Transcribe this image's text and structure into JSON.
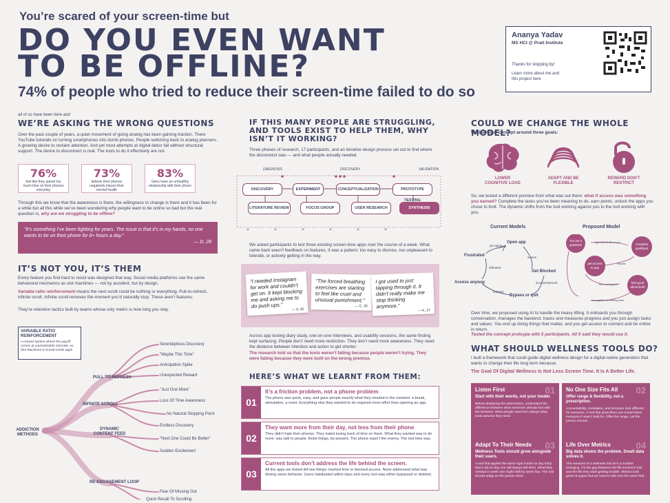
{
  "header": {
    "kicker": "You’re scared of your screen-time but",
    "title1": "DO YOU EVEN WANT",
    "title2": "TO BE OFFLINE?",
    "subtitle": "74% of people who tried to reduce their screen-time failed to do so"
  },
  "author": {
    "name": "Ananya Yadav",
    "program": "MS HCI @ Pratt Institute",
    "thanks": "Thanks for stopping by!",
    "more": "Learn more about me and this project here"
  },
  "col1": {
    "eyebrow": "all of us have been here and",
    "h1": "WE’RE ASKING THE WRONG QUESTIONS",
    "p1": "Over the past couple of years, a quiet movement of going analog has been gaining traction. There YouTube tutorials on turning smartphones into dumb phones. People switching back to analog planners. A growing desire to reclaim attention. And yet most attempts at digital detox fail without structural support. The desire to disconnect is real. The tools to do it effectively are not.",
    "stats": [
      {
        "n": "76%",
        "t": "feel like they spend too much time on their phones everyday"
      },
      {
        "n": "73%",
        "t": "believe their phones negatively impact their mental health"
      },
      {
        "n": "83%",
        "t": "Genz have an unhealthy relationship with their phone"
      }
    ],
    "p2a": "Through this we know that the awareness is there, the willingness to change is there and it has been for a while but all this while we’ve been wondering why people want to be online so bad but the real question is,",
    "p2b": "why are we struggling to be offline?",
    "quote": "\"It’s something I’ve been fighting for years. The issue is that it’s in my hands, no one wants to be on their phone for 8+ hours a day.\"",
    "quote_by": "— D, 28",
    "h2": "IT’S NOT YOU, IT’S THEM",
    "p3": "Every feature you find hard to resist was designed that way. Social media platforms use the same behavioral mechanics as slot machines — not by accident, but by design.",
    "p4a": "Variable ratio reinforcement",
    "p4b": "means the next scroll could be nothing or everything. Pull-to-refresh, infinite scroll. Infinite scroll removes the moment you’d naturally stop. These aren’t features.",
    "p5": "They’re retention tactics built by teams whose only metric is how long you stay.",
    "vrr_title": "VARIABLE RATIO REINFORCEMENT",
    "vrr_text": "A reward system where the payoff comes at unpredictable intervals. ex. Slot Machines & Social media apps",
    "tree_root": "ADDICTION METHODS",
    "tree": [
      {
        "name": "PULL TO REFRESH",
        "leaves": [
          "Serendipitous Discovery",
          "\"Maybe This Time\"",
          "Anticipation Spike",
          "Unexpected Reward"
        ]
      },
      {
        "name": "INFINITE SCROLL",
        "leaves": [
          "\"Just One More\"",
          "Loss Of Time Awareness",
          "No Natural Stopping Point",
          "Endless Discovery"
        ]
      },
      {
        "name": "DYNAMIC CONTENT FEED",
        "leaves": [
          "\"Next One Could Be Better\"",
          "Sudden Excitement"
        ]
      },
      {
        "name": "RE-ENGAGEMENT LOOP",
        "leaves": [
          "Fear Of Missing Out",
          "Quick Recall To Scrolling"
        ]
      }
    ]
  },
  "col2": {
    "h1": "IF THIS MANY PEOPLE ARE STRUGGLING, AND TOOLS EXIST TO HELP THEM, WHY ISN’T IT WORKING?",
    "p1": "Three phases of research, 17 participants, and an iterative design process set out to find where the disconnect was — and what people actually needed.",
    "phases": [
      "DIAGNOSIS",
      "DISCOVERY",
      "VALIDATION"
    ],
    "nodes": [
      "DISCOVERY",
      "EXPERIMENT",
      "CONCEPTUALIZATION",
      "PROTOTYPE TESTING",
      "LITERATURE REVIEW",
      "FOCUS GROUP",
      "USER RESEARCH",
      "SYNTHESIS"
    ],
    "p2": "We asked participants to test three existing screen-time apps over the course of a week. What came back wasn’t feedback on features. It was a pattern: too easy to dismiss, too unpleasant to tolerate, or actively getting in the way.",
    "quotes": [
      {
        "t": "\"I needed Instagram for work and couldn’t get on. It kept blocking me and asking me to do push ups.\"",
        "by": "— V, 25"
      },
      {
        "t": "\"The forced breathing exercises are starting to feel like cruel and unusual punishment.\"",
        "by": "— C, 26"
      },
      {
        "t": "I got used to just tapping through it. It didn’t really make me stop thinking anymore.\"",
        "by": "— K, 27"
      }
    ],
    "p3a": "Across app testing diary study, one-on-one interviews, and usability sessions, the same finding kept surfacing.",
    "p3b": "People don’t need more restriction. They don’t need more awareness. They need the distance between intention and action to get shorter.",
    "p4": "The research told us that the tools weren’t failing because people weren’t trying. They were failing because they were built on the wrong premise.",
    "h2": "HERE’S WHAT WE LEARNT FROM THEM:",
    "learn": [
      {
        "n": "01",
        "t": "It’s a friction problem, not a phone problem",
        "d": "The phone was quick, easy, and gave people exactly what they needed in the moment: a break, stimulation, a reset. Everything else they wanted to do required more effort than opening an app."
      },
      {
        "n": "02",
        "t": "They want more from their day, not less from their phone",
        "d": "They didn’t hate their phones. They hated losing track of time on them. What they wanted was to do more: was talk to people, finish things, be present. The phone wasn’t the enemy. The lost time was."
      },
      {
        "n": "03",
        "t": "Current tools don’t address the life behind the screen.",
        "d": "All the apps we tested did two things: tracked time or blocked access. None addressed what was driving users behavior. Users habituated within days and every tool was either bypassed or deleted."
      }
    ]
  },
  "col3": {
    "h1": "COULD WE CHANGE THE  WHOLE MODEL?",
    "intro": "We built our concept around three goals:",
    "goals": [
      "LOWER COGNITIVE LOAD",
      "ADAPT AND BE FLEXIBLE",
      "REWARD DON’T RESTRICT"
    ],
    "p1a": "So, we tested a different premise from what was out there:",
    "p1b": "what if access was something you earned?",
    "p1c": "Complete the tasks you’ve been meaning to do, earn points, unlock the apps you chose to limit. The dynamic shifts from the tool working against you to the tool working with you.",
    "current_title": "Current Models",
    "proposed_title": "Proposed Model",
    "current": [
      "Open app",
      "Frustrated",
      "Get Blocked",
      "Access anyway",
      "Bypass or quit",
      "yet again",
      "defeated",
      "scams",
      "irritated",
      "inconvenienced"
    ],
    "proposed": [
      "You set a goal/task",
      "complete goal/task",
      "get access to app",
      "feel good about both",
      "app learns about you",
      "reward",
      "time well spent",
      "accomplish something else"
    ],
    "p2": "Over time, we proposed using AI to handle the heavy lifting. It onboards you through conversation, manages the backend, tracks and measures progress and you just assign tasks and values. You end up doing things that matter, and you get access to connect and be online in return.",
    "p3": "Tested the concept protoype with 5 participants. All 5 said they would use it.",
    "h2": "WHAT SHOULD WELLNESS TOOLS DO?",
    "p4": "I built a framework that could guide digital wellness design for a digital-native generation that wants to change their life long term because.",
    "goal": "The Goal Of Digital Wellness Is Not Less Screen Time. It Is A Better Life.",
    "boxes": [
      {
        "a": "Listen First",
        "n": "01",
        "b": "Start with their words, not your model.",
        "c": "Before designing the intervention, understand the difference between what someone already has with the behavior. What people need isn’t always what tools assume they need."
      },
      {
        "a": "No One Size Fits All",
        "n": "02",
        "b": "Offer range & flexibility, not a prescription.",
        "c": "Accountability, motivation, and structure look different for everyone. A tool that prescribes one model loses everyone it wasn’t built for. Offer the range. Let the person choose."
      },
      {
        "a": "Adapt To Their Needs",
        "n": "03",
        "b": "Wellness Tools should grow alongside their users.",
        "c": "A tool that applies the same rigid model on day thirty that it did on day one will always fall short. What they needed in week one might shift by week four. The tool should adapt as the person does."
      },
      {
        "a": "Life Over Metrics",
        "n": "04",
        "b": "Big data shows the problem. Small data solves it.",
        "c": "The measure of a wellness tool isn’t a number changing. It’s the gap between the life someone has and the life they want getting smaller. Metrics look great on paper but we need to ask how the users feel."
      }
    ]
  },
  "colors": {
    "navy": "#3d4262",
    "plum": "#a4507c",
    "bg": "#f4f2f1"
  }
}
